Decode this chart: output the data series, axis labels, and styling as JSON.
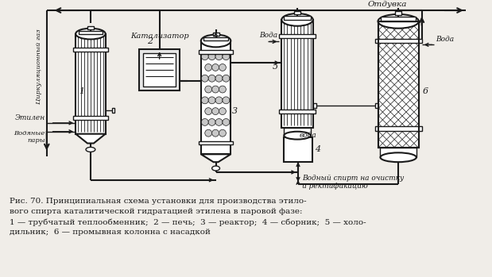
{
  "bg_color": "#f0ede8",
  "line_color": "#1a1a1a",
  "caption_line1": "Рис. 70. Принципиальная схема установки для производства этило-",
  "caption_line2": "вого спирта каталитической гидратацией этилена в паровой фазе:",
  "caption_line3": "1 — трубчатый теплообменник;  2 — печь;  3 — реактор;  4 — сборник;  5 — холо-",
  "caption_line4": "дильник;  6 — промывная колонна с насадкой",
  "label_cirk": "Циркуляционный газ",
  "label_otduvka": "Отдувка",
  "label_etilen": "Этилен",
  "label_voda_pary": "Водяные\nпары",
  "label_katalizator": "Катализатор",
  "label_voda_in5": "Вода",
  "label_voda_out5": "вода",
  "label_voda_in6": "Вода",
  "label_vodny_spirt": "Водный спирт на очистку\nи ректификацию",
  "label_1": "1",
  "label_2": "2",
  "label_3": "3",
  "label_4": "4",
  "label_5": "5",
  "label_6": "6"
}
